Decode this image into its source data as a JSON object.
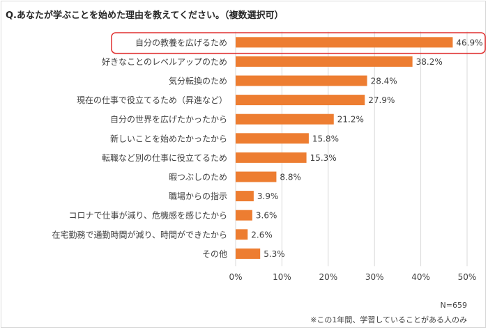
{
  "question": "Q.あなたが学ぶことを始めた理由を教えてください。（複数選択可）",
  "sample_size": "N=659",
  "footnote": "※この1年間、学習していることがある人のみ",
  "colors": {
    "bar": "#ed7d31",
    "highlight": "#e03030",
    "grid": "#d9d9d9",
    "text": "#404040"
  },
  "chart_data": {
    "type": "bar",
    "orientation": "horizontal",
    "title": "",
    "xlabel": "",
    "ylabel": "",
    "xlim": [
      0,
      50
    ],
    "x_ticks": [
      "0%",
      "10%",
      "20%",
      "30%",
      "40%",
      "50%"
    ],
    "categories": [
      "自分の教養を広げるため",
      "好きなことのレベルアップのため",
      "気分転換のため",
      "現在の仕事で役立てるため（昇進など）",
      "自分の世界を広げたかったから",
      "新しいことを始めたかったから",
      "転職など別の仕事に役立てるため",
      "暇つぶしのため",
      "職場からの指示",
      "コロナで仕事が減り、危機感を感じたから",
      "在宅勤務で通勤時間が減り、時間ができたから",
      "その他"
    ],
    "values": [
      46.9,
      38.2,
      28.4,
      27.9,
      21.2,
      15.8,
      15.3,
      8.8,
      3.9,
      3.6,
      2.6,
      5.3
    ],
    "value_labels": [
      "46.9%",
      "38.2%",
      "28.4%",
      "27.9%",
      "21.2%",
      "15.8%",
      "15.3%",
      "8.8%",
      "3.9%",
      "3.6%",
      "2.6%",
      "5.3%"
    ],
    "highlighted_category_index": 0,
    "grid": true,
    "legend": "none"
  }
}
